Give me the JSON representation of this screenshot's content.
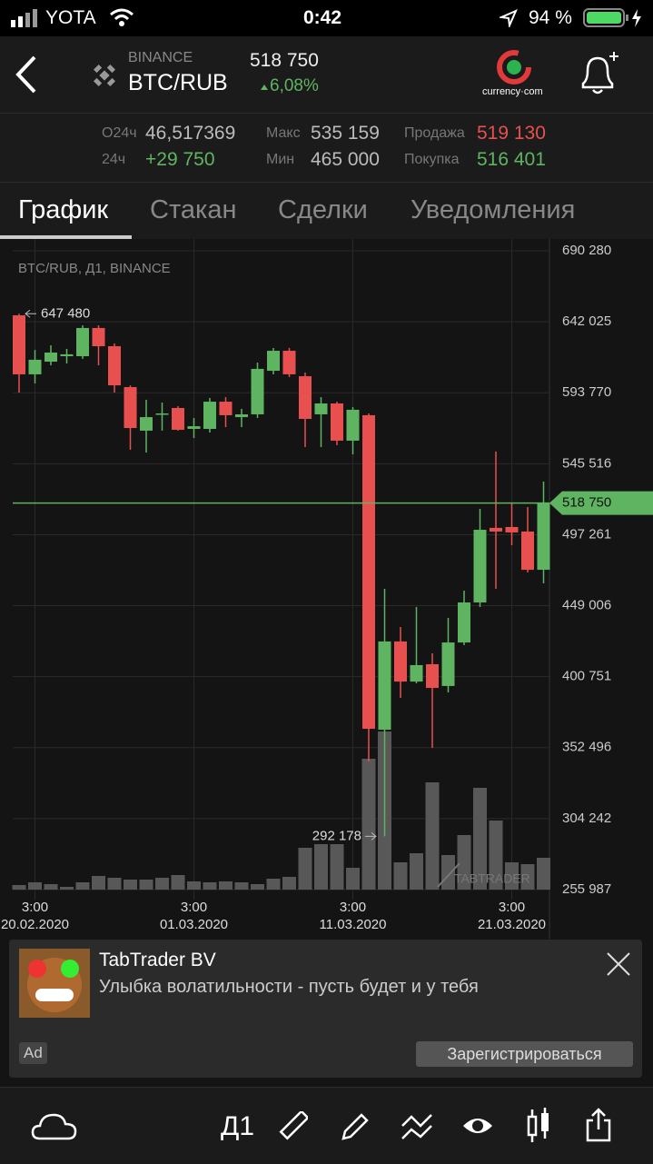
{
  "status_bar": {
    "carrier": "YOTA",
    "time": "0:42",
    "battery": "94 %"
  },
  "header": {
    "exchange": "BINANCE",
    "pair": "BTC/RUB",
    "price": "518 750",
    "change": "6,08%",
    "logo": "currency·com"
  },
  "stats": [
    [
      {
        "label": "O24ч",
        "value": "46,517369"
      },
      {
        "label": "Макс",
        "value": "535 159"
      },
      {
        "label": "Продажа",
        "value": "519 130"
      }
    ],
    [
      {
        "label": "24ч",
        "value": "+29 750"
      },
      {
        "label": "Мин",
        "value": "465 000"
      },
      {
        "label": "Покупка",
        "value": "516 401"
      }
    ]
  ],
  "tabs": [
    "График",
    "Стакан",
    "Сделки",
    "Уведомления"
  ],
  "chart_data": {
    "type": "candlestick",
    "title": "BTC/RUB, Д1, BINANCE",
    "watermark": "TABTRADER",
    "up_color": "#5fb462",
    "down_color": "#e85050",
    "volume_color": "#585858",
    "grid": true,
    "ylim": [
      255987,
      690280
    ],
    "yticks": [
      {
        "value": 690280,
        "label": "690 280"
      },
      {
        "value": 642025,
        "label": "642 025"
      },
      {
        "value": 593770,
        "label": "593 770"
      },
      {
        "value": 545516,
        "label": "545 516"
      },
      {
        "value": 497261,
        "label": "497 261"
      },
      {
        "value": 449006,
        "label": "449 006"
      },
      {
        "value": 400751,
        "label": "400 751"
      },
      {
        "value": 352496,
        "label": "352 496"
      },
      {
        "value": 304242,
        "label": "304 242"
      },
      {
        "value": 255987,
        "label": "255 987"
      }
    ],
    "categories": [
      null,
      "3:00\n20.02.2020",
      null,
      null,
      null,
      null,
      null,
      null,
      null,
      null,
      null,
      "3:00\n01.03.2020",
      null,
      null,
      null,
      null,
      null,
      null,
      null,
      null,
      null,
      "3:00\n11.03.2020",
      null,
      null,
      null,
      null,
      null,
      null,
      null,
      null,
      null,
      "3:00\n21.03.2020",
      null,
      null
    ],
    "open": [
      646400,
      606300,
      614900,
      618600,
      618600,
      637800,
      625400,
      597600,
      568000,
      579100,
      583400,
      569200,
      569200,
      587700,
      577200,
      579100,
      608700,
      622300,
      605000,
      579100,
      586500,
      561200,
      578500,
      364700,
      424700,
      397400,
      409200,
      394400,
      424000,
      451200,
      501900,
      502500,
      499400,
      473400
    ],
    "high": [
      647480,
      622900,
      626000,
      623600,
      639600,
      639600,
      627300,
      598800,
      589000,
      587100,
      584600,
      576600,
      590200,
      590800,
      582800,
      614300,
      624200,
      624200,
      607500,
      590800,
      587700,
      584000,
      579700,
      460500,
      434500,
      448100,
      416600,
      440700,
      459200,
      514800,
      553800,
      519100,
      516100,
      533400
    ],
    "low": [
      593900,
      600100,
      612400,
      613700,
      616800,
      612400,
      593900,
      555000,
      553100,
      568000,
      568000,
      563000,
      566700,
      570400,
      570400,
      576600,
      606300,
      604400,
      556800,
      556800,
      558100,
      551900,
      343100,
      292178,
      386300,
      396200,
      352300,
      390000,
      422200,
      448100,
      460500,
      490100,
      471600,
      464200
    ],
    "close": [
      606300,
      616200,
      621100,
      619900,
      637800,
      625400,
      598800,
      569800,
      577200,
      579700,
      568600,
      571000,
      587700,
      578500,
      579100,
      610000,
      622300,
      606300,
      576000,
      586500,
      561200,
      582200,
      365300,
      424700,
      397400,
      408600,
      393100,
      424000,
      451200,
      500600,
      499400,
      498800,
      473400,
      518750
    ],
    "volumes": [
      5,
      8,
      6,
      3,
      8,
      15,
      13,
      11,
      11,
      13,
      16,
      9,
      8,
      9,
      8,
      6,
      12,
      14,
      46,
      50,
      50,
      24,
      144,
      174,
      30,
      40,
      118,
      38,
      60,
      112,
      76,
      30,
      28,
      35
    ],
    "price_line": {
      "value": 518750,
      "label": "518 750",
      "color": "#5fb462"
    },
    "max_marker": {
      "value": 647480,
      "label": "647 480"
    },
    "min_marker": {
      "value": 292178,
      "label": "292 178"
    }
  },
  "ad": {
    "title": "TabTrader BV",
    "text": "Улыбка волатильности - пусть будет и у тебя",
    "badge": "Ad",
    "button": "Зарегистрироваться"
  },
  "toolbar": {
    "interval": "Д1"
  }
}
